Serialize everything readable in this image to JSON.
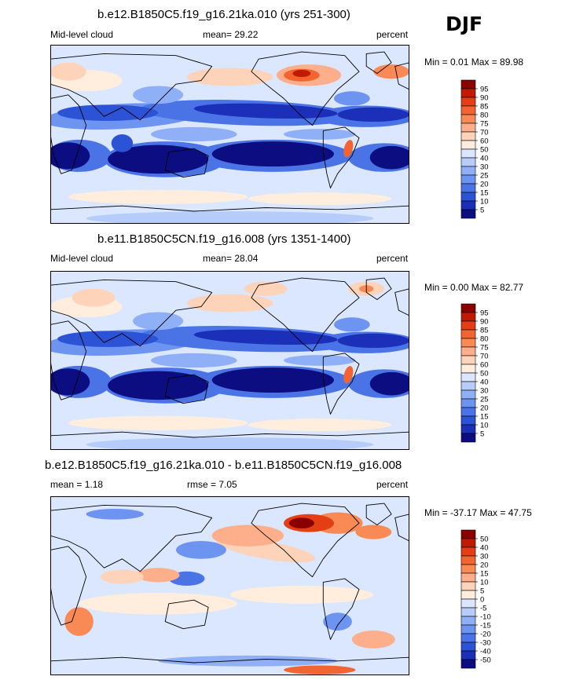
{
  "season": "DJF",
  "panels": [
    {
      "title": "b.e12.B1850C5.f19_g16.21ka.010 (yrs 251-300)",
      "left_label": "Mid-level cloud",
      "center_label": "mean=  29.22",
      "right_label": "percent",
      "minmax": "Min =   0.01 Max =  89.98",
      "colorbar_labels": [
        "95",
        "90",
        "85",
        "80",
        "75",
        "70",
        "60",
        "50",
        "40",
        "30",
        "25",
        "20",
        "15",
        "10",
        "5"
      ],
      "colorbar_colors": [
        "#8a0000",
        "#c01b00",
        "#e33e14",
        "#f26431",
        "#f98a55",
        "#fcaf8a",
        "#fdd3b9",
        "#ffeedd",
        "#dbe6ff",
        "#b6cdfc",
        "#8fb0f7",
        "#6c94f0",
        "#4a73e6",
        "#2c52d6",
        "#1b2fb8",
        "#0c0d80"
      ]
    },
    {
      "title": "b.e11.B1850C5CN.f19_g16.008 (yrs 1351-1400)",
      "left_label": "Mid-level cloud",
      "center_label": "mean=  28.04",
      "right_label": "percent",
      "minmax": "Min =   0.00 Max =  82.77",
      "colorbar_labels": [
        "95",
        "90",
        "85",
        "80",
        "75",
        "70",
        "60",
        "50",
        "40",
        "30",
        "25",
        "20",
        "15",
        "10",
        "5"
      ],
      "colorbar_colors": [
        "#8a0000",
        "#c01b00",
        "#e33e14",
        "#f26431",
        "#f98a55",
        "#fcaf8a",
        "#fdd3b9",
        "#ffeedd",
        "#dbe6ff",
        "#b6cdfc",
        "#8fb0f7",
        "#6c94f0",
        "#4a73e6",
        "#2c52d6",
        "#1b2fb8",
        "#0c0d80"
      ]
    },
    {
      "title": "b.e12.B1850C5.f19_g16.21ka.010 - b.e11.B1850C5CN.f19_g16.008",
      "left_label": "mean =   1.18",
      "center_label": "rmse =   7.05",
      "right_label": "percent",
      "minmax": "Min = -37.17 Max =  47.75",
      "colorbar_labels": [
        "50",
        "40",
        "30",
        "20",
        "15",
        "10",
        "5",
        "0",
        "-5",
        "-10",
        "-15",
        "-20",
        "-30",
        "-40",
        "-50"
      ],
      "colorbar_colors": [
        "#8a0000",
        "#c01b00",
        "#e33e14",
        "#f26431",
        "#f98a55",
        "#fcaf8a",
        "#fdd3b9",
        "#ffeedd",
        "#dbe6ff",
        "#b6cdfc",
        "#8fb0f7",
        "#6c94f0",
        "#4a73e6",
        "#2c52d6",
        "#1b2fb8",
        "#0c0d80"
      ]
    }
  ]
}
